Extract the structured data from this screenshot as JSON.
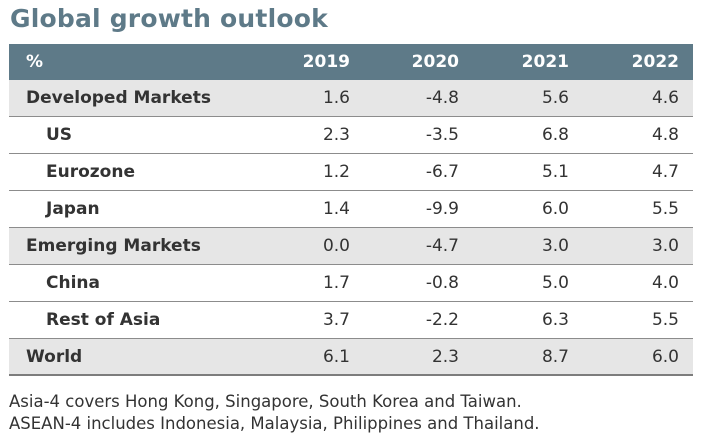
{
  "title": "Global growth outlook",
  "table": {
    "header": {
      "label": "%",
      "years": [
        "2019",
        "2020",
        "2021",
        "2022"
      ]
    },
    "rows": [
      {
        "label": "Developed Markets",
        "values": [
          "1.6",
          "-4.8",
          "5.6",
          "4.6"
        ]
      },
      {
        "label": "US",
        "values": [
          "2.3",
          "-3.5",
          "6.8",
          "4.8"
        ]
      },
      {
        "label": "Eurozone",
        "values": [
          "1.2",
          "-6.7",
          "5.1",
          "4.7"
        ]
      },
      {
        "label": "Japan",
        "values": [
          "1.4",
          "-9.9",
          "6.0",
          "5.5"
        ]
      },
      {
        "label": "Emerging Markets",
        "values": [
          "0.0",
          "-4.7",
          "3.0",
          "3.0"
        ]
      },
      {
        "label": "China",
        "values": [
          "1.7",
          "-0.8",
          "5.0",
          "4.0"
        ]
      },
      {
        "label": "Rest of Asia",
        "values": [
          "3.7",
          "-2.2",
          "6.3",
          "5.5"
        ]
      },
      {
        "label": "World",
        "values": [
          "6.1",
          "2.3",
          "8.7",
          "6.0"
        ]
      }
    ]
  },
  "footnotes": [
    "Asia-4 covers Hong Kong, Singapore, South Korea and Taiwan.",
    "ASEAN-4 includes Indonesia, Malaysia, Philippines and Thailand."
  ],
  "colors": {
    "title": "#5e7a88",
    "header_background": "#5e7a88",
    "shaded_row": "#e6e6e6",
    "text": "#333333"
  }
}
